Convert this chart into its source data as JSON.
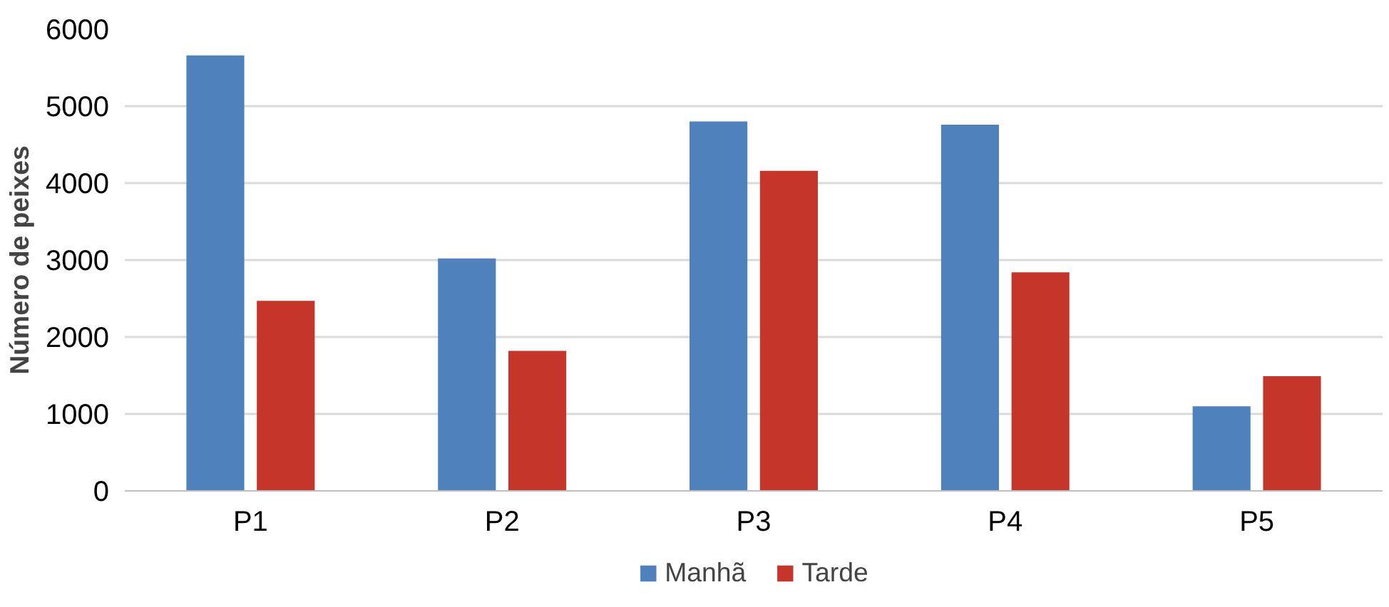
{
  "chart_data": {
    "type": "bar",
    "ylabel": "Número de peixes",
    "categories": [
      "P1",
      "P2",
      "P3",
      "P4",
      "P5"
    ],
    "series": [
      {
        "name": "Manhã",
        "color": "#4f81bd",
        "values": [
          5660,
          3020,
          4800,
          4760,
          1100
        ]
      },
      {
        "name": "Tarde",
        "color": "#c5352a",
        "values": [
          2470,
          1820,
          4160,
          2840,
          1490
        ]
      }
    ],
    "ylim": [
      0,
      6000
    ],
    "yticks": [
      0,
      1000,
      2000,
      3000,
      4000,
      5000,
      6000
    ],
    "grid": "y",
    "legend": "bottom"
  }
}
